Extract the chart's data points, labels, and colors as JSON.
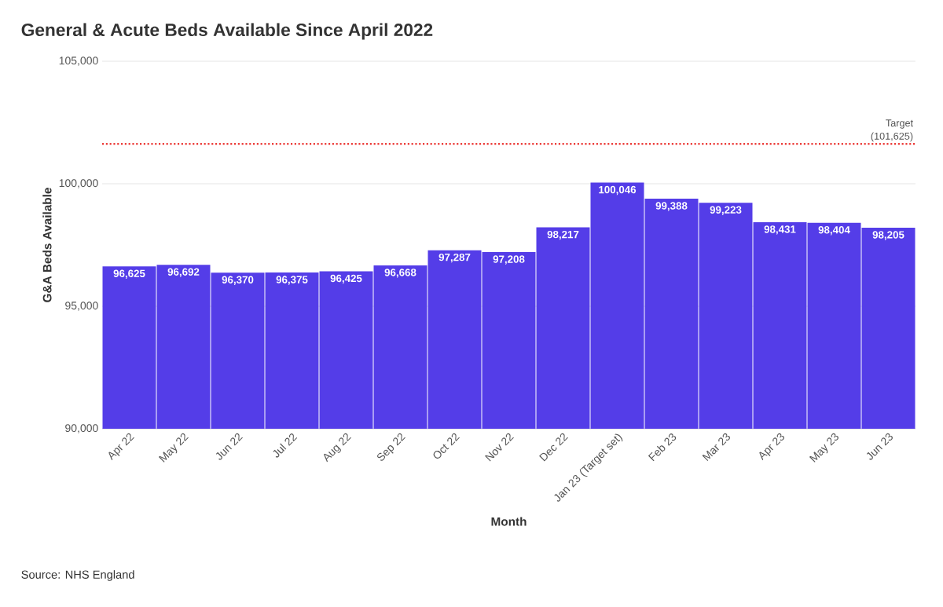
{
  "chart_data": {
    "type": "bar",
    "title": "General & Acute Beds Available Since April 2022",
    "xlabel": "Month",
    "ylabel": "G&A Beds Available",
    "categories": [
      "Apr 22",
      "May 22",
      "Jun 22",
      "Jul 22",
      "Aug 22",
      "Sep 22",
      "Oct 22",
      "Nov 22",
      "Dec 22",
      "Jan 23 (Target set)",
      "Feb 23",
      "Mar 23",
      "Apr 23",
      "May 23",
      "Jun 23"
    ],
    "values": [
      96625,
      96692,
      96370,
      96375,
      96425,
      96668,
      97287,
      97208,
      98217,
      100046,
      99388,
      99223,
      98431,
      98404,
      98205
    ],
    "value_labels": [
      "96,625",
      "96,692",
      "96,370",
      "96,375",
      "96,425",
      "96,668",
      "97,287",
      "97,208",
      "98,217",
      "100,046",
      "99,388",
      "99,223",
      "98,431",
      "98,404",
      "98,205"
    ],
    "color": "#543de8",
    "ylim": [
      90000,
      105000
    ],
    "yticks": [
      {
        "value": 90000,
        "label": "90,000"
      },
      {
        "value": 95000,
        "label": "95,000"
      },
      {
        "value": 100000,
        "label": "100,000"
      },
      {
        "value": 105000,
        "label": "105,000"
      }
    ],
    "grid": "y",
    "ref_lines": [
      {
        "axis": "y",
        "value": 101625,
        "label": "Target (101,625)",
        "color": "#e8130f",
        "line_style": "dotted"
      }
    ],
    "annotations": [
      "Source: NHS England"
    ]
  }
}
